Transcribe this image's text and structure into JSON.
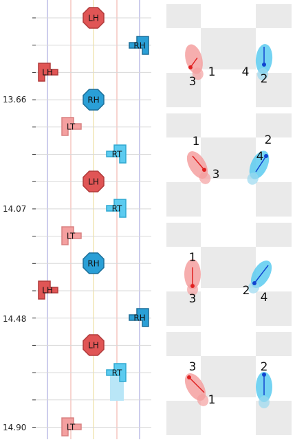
{
  "axis": {
    "labels": [
      "13.66",
      "14.07",
      "14.48",
      "14.90"
    ]
  },
  "lanes": {
    "colors": [
      "#9b9bd8",
      "#f0a8a0",
      "#e8d890",
      "#f0a8a0",
      "#9b9bd8"
    ]
  },
  "events": [
    {
      "type": "LH",
      "label": "LH",
      "shape": "octagon"
    },
    {
      "type": "RH",
      "label": "RH",
      "shape": "arrow-right"
    },
    {
      "type": "LH",
      "label": "LH",
      "shape": "arrow-left"
    },
    {
      "type": "RH",
      "label": "RH",
      "shape": "octagon"
    },
    {
      "type": "LT",
      "label": "LT",
      "shape": "arrow-left"
    },
    {
      "type": "RT",
      "label": "RT",
      "shape": "arrow-right"
    },
    {
      "type": "LH",
      "label": "LH",
      "shape": "octagon"
    },
    {
      "type": "RT",
      "label": "RT",
      "shape": "arrow-right"
    },
    {
      "type": "LT",
      "label": "LT",
      "shape": "arrow-left"
    },
    {
      "type": "RH",
      "label": "RH",
      "shape": "octagon"
    },
    {
      "type": "LH",
      "label": "LH",
      "shape": "arrow-left"
    },
    {
      "type": "RH",
      "label": "RH",
      "shape": "arrow-right"
    },
    {
      "type": "LH",
      "label": "LH",
      "shape": "octagon"
    },
    {
      "type": "RT",
      "label": "RT",
      "shape": "arrow-right"
    },
    {
      "type": "LT",
      "label": "LT",
      "shape": "arrow-left"
    }
  ],
  "panels": [
    {
      "labels": [
        "1",
        "3",
        "4",
        "2"
      ]
    },
    {
      "labels": [
        "1",
        "3",
        "2",
        "4"
      ]
    },
    {
      "labels": [
        "1",
        "3",
        "2",
        "4"
      ]
    },
    {
      "labels": [
        "3",
        "1",
        "2"
      ]
    }
  ],
  "colors": {
    "left_red": "#e05555",
    "left_pink": "#f4a0a0",
    "right_blue": "#2a9fd6",
    "right_light": "#5ccbf0",
    "grid_gray": "#eaeaea"
  }
}
